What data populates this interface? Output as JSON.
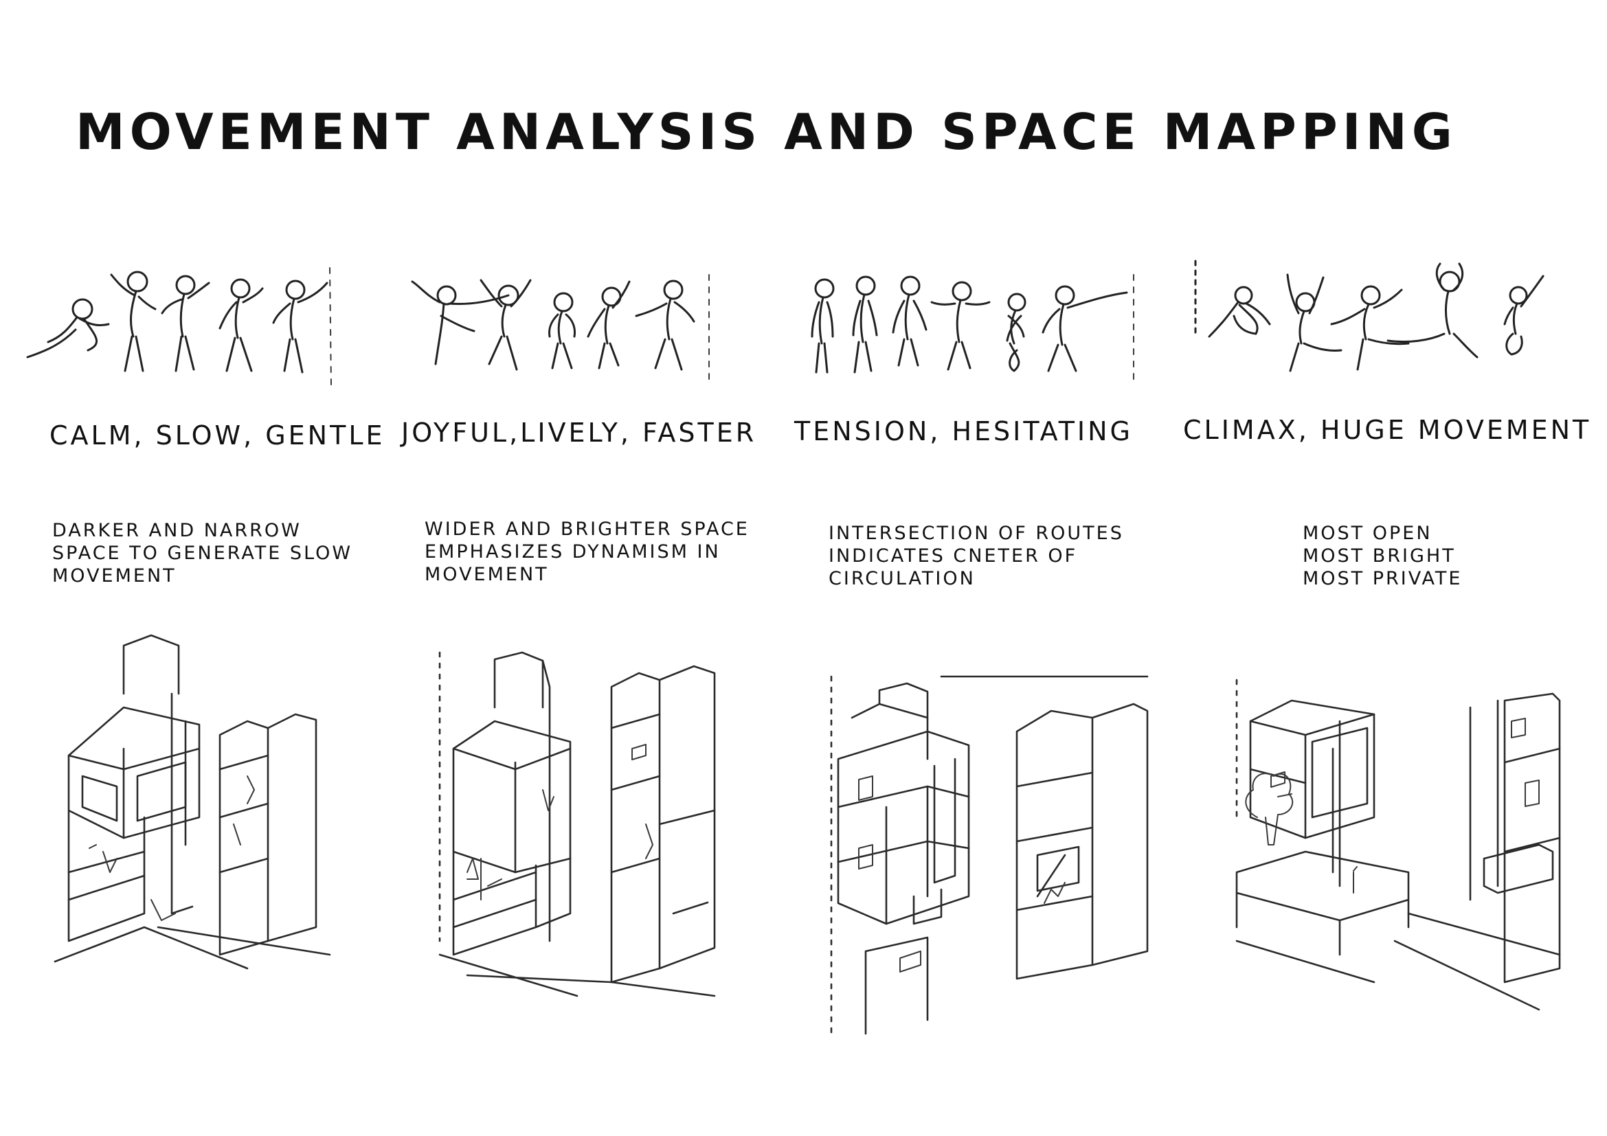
{
  "title": "MOVEMENT ANALYSIS AND SPACE MAPPING",
  "panels": [
    {
      "mood": "CALM, SLOW, GENTLE",
      "description": [
        "DARKER AND NARROW",
        "SPACE TO GENERATE SLOW",
        "MOVEMENT"
      ]
    },
    {
      "mood": "JOYFUL,LIVELY, FASTER",
      "description": [
        "WIDER AND BRIGHTER SPACE",
        "EMPHASIZES DYNAMISM IN",
        "MOVEMENT"
      ]
    },
    {
      "mood": "TENSION, HESITATING",
      "description": [
        "INTERSECTION OF ROUTES",
        "INDICATES CNETER OF",
        "CIRCULATION"
      ]
    },
    {
      "mood": "CLIMAX, HUGE MOVEMENT",
      "description": [
        "MOST OPEN",
        "MOST BRIGHT",
        "MOST PRIVATE"
      ]
    }
  ]
}
